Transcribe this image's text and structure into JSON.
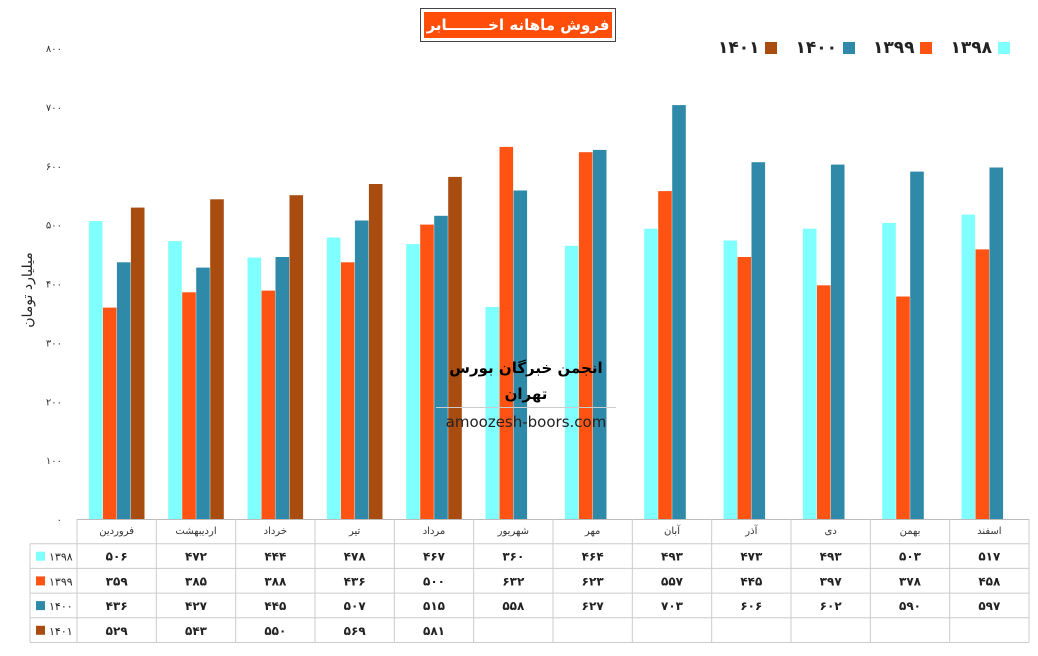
{
  "title": "فروش ماهانه اخــــــــابر",
  "y_axis_label": "میلیارد تومان",
  "watermark": {
    "line1": "انجمن خبرگان بورس تهران",
    "line2": "amoozesh-boors.com"
  },
  "chart_data": {
    "type": "bar",
    "title": "فروش ماهانه اخــــــــابر",
    "ylabel": "میلیارد تومان",
    "ylim": [
      0,
      800
    ],
    "yticks": [
      0,
      100,
      200,
      300,
      400,
      500,
      600,
      700,
      800
    ],
    "ytick_labels": [
      "۰",
      "۱۰۰",
      "۲۰۰",
      "۳۰۰",
      "۴۰۰",
      "۵۰۰",
      "۶۰۰",
      "۷۰۰",
      "۸۰۰"
    ],
    "grid": false,
    "legend_position": "top-right",
    "categories": [
      "فروردین",
      "اردیبهشت",
      "خرداد",
      "تیر",
      "مرداد",
      "شهریور",
      "مهر",
      "آبان",
      "آذر",
      "دی",
      "بهمن",
      "اسفند"
    ],
    "series": [
      {
        "name": "۱۳۹۸",
        "color": "#80ffff",
        "values": [
          506,
          472,
          444,
          478,
          467,
          360,
          464,
          493,
          473,
          493,
          503,
          517
        ],
        "labels": [
          "۵۰۶",
          "۴۷۲",
          "۴۴۴",
          "۴۷۸",
          "۴۶۷",
          "۳۶۰",
          "۴۶۴",
          "۴۹۳",
          "۴۷۳",
          "۴۹۳",
          "۵۰۳",
          "۵۱۷"
        ]
      },
      {
        "name": "۱۳۹۹",
        "color": "#ff5314",
        "values": [
          359,
          385,
          388,
          436,
          500,
          632,
          623,
          557,
          445,
          397,
          378,
          458
        ],
        "labels": [
          "۳۵۹",
          "۳۸۵",
          "۳۸۸",
          "۴۳۶",
          "۵۰۰",
          "۶۳۲",
          "۶۲۳",
          "۵۵۷",
          "۴۴۵",
          "۳۹۷",
          "۳۷۸",
          "۴۵۸"
        ]
      },
      {
        "name": "۱۴۰۰",
        "color": "#2e8aa8",
        "values": [
          436,
          427,
          445,
          507,
          515,
          558,
          627,
          703,
          606,
          602,
          590,
          597
        ],
        "labels": [
          "۴۳۶",
          "۴۲۷",
          "۴۴۵",
          "۵۰۷",
          "۵۱۵",
          "۵۵۸",
          "۶۲۷",
          "۷۰۳",
          "۶۰۶",
          "۶۰۲",
          "۵۹۰",
          "۵۹۷"
        ]
      },
      {
        "name": "۱۴۰۱",
        "color": "#a84c10",
        "values": [
          529,
          543,
          550,
          569,
          581,
          null,
          null,
          null,
          null,
          null,
          null,
          null
        ],
        "labels": [
          "۵۲۹",
          "۵۴۳",
          "۵۵۰",
          "۵۶۹",
          "۵۸۱",
          "",
          "",
          "",
          "",
          "",
          "",
          ""
        ]
      }
    ]
  }
}
